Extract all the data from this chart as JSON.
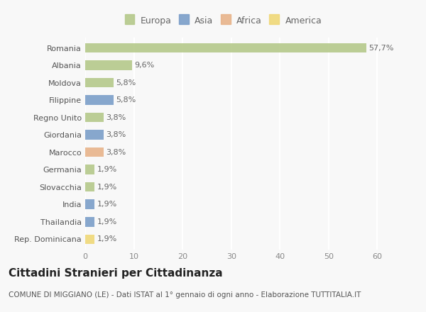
{
  "countries": [
    "Romania",
    "Albania",
    "Moldova",
    "Filippine",
    "Regno Unito",
    "Giordania",
    "Marocco",
    "Germania",
    "Slovacchia",
    "India",
    "Thailandia",
    "Rep. Dominicana"
  ],
  "values": [
    57.7,
    9.6,
    5.8,
    5.8,
    3.8,
    3.8,
    3.8,
    1.9,
    1.9,
    1.9,
    1.9,
    1.9
  ],
  "labels": [
    "57,7%",
    "9,6%",
    "5,8%",
    "5,8%",
    "3,8%",
    "3,8%",
    "3,8%",
    "1,9%",
    "1,9%",
    "1,9%",
    "1,9%",
    "1,9%"
  ],
  "continents": [
    "Europa",
    "Europa",
    "Europa",
    "Asia",
    "Europa",
    "Asia",
    "Africa",
    "Europa",
    "Europa",
    "Asia",
    "Asia",
    "America"
  ],
  "colors": {
    "Europa": "#b5c98a",
    "Asia": "#7b9ec9",
    "Africa": "#e8b48a",
    "America": "#f0d878"
  },
  "title": "Cittadini Stranieri per Cittadinanza",
  "subtitle": "COMUNE DI MIGGIANO (LE) - Dati ISTAT al 1° gennaio di ogni anno - Elaborazione TUTTITALIA.IT",
  "xlim": [
    0,
    63
  ],
  "xticks": [
    0,
    10,
    20,
    30,
    40,
    50,
    60
  ],
  "background_color": "#f8f8f8",
  "grid_color": "#ffffff",
  "bar_height": 0.55,
  "title_fontsize": 11,
  "subtitle_fontsize": 7.5,
  "label_fontsize": 8,
  "tick_fontsize": 8,
  "legend_fontsize": 9
}
